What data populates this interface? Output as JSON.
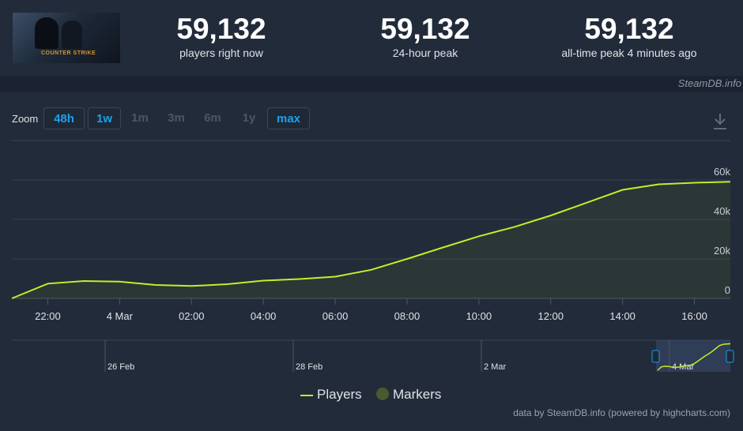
{
  "stats": {
    "current": {
      "value": "59,132",
      "label": "players right now"
    },
    "peak24": {
      "value": "59,132",
      "label": "24-hour peak"
    },
    "alltime": {
      "value": "59,132",
      "label": "all-time peak 4 minutes ago"
    }
  },
  "logo": {
    "text": "COUNTER STRIKE",
    "icon": "game-logo"
  },
  "credit_top": "SteamDB.info",
  "zoom": {
    "label": "Zoom",
    "buttons": [
      {
        "label": "48h",
        "active": true
      },
      {
        "label": "1w",
        "active": true
      },
      {
        "label": "1m",
        "active": false
      },
      {
        "label": "3m",
        "active": false
      },
      {
        "label": "6m",
        "active": false
      },
      {
        "label": "1y",
        "active": false
      },
      {
        "label": "max",
        "active": true
      }
    ]
  },
  "download_icon": "download-icon",
  "legend": {
    "players": "Players",
    "markers": "Markers"
  },
  "credit_bottom": "data by SteamDB.info (powered by highcharts.com)",
  "colors": {
    "line": "#c3ee27",
    "marker": "#4a5a2e",
    "accent": "#1aa1ee"
  },
  "chart_data": {
    "type": "line",
    "series": [
      {
        "name": "Players",
        "x": [
          "21:00",
          "22:00",
          "23:00",
          "4 Mar",
          "01:00",
          "02:00",
          "03:00",
          "04:00",
          "05:00",
          "06:00",
          "07:00",
          "08:00",
          "09:00",
          "10:00",
          "11:00",
          "12:00",
          "13:00",
          "14:00",
          "15:00",
          "16:00",
          "16:20"
        ],
        "values": [
          0,
          7500,
          8800,
          8500,
          6800,
          6300,
          7200,
          9000,
          9800,
          11000,
          14500,
          20000,
          25800,
          31500,
          36300,
          42000,
          48500,
          55000,
          57800,
          58600,
          59132
        ]
      }
    ],
    "x_ticks": [
      "22:00",
      "4 Mar",
      "02:00",
      "04:00",
      "06:00",
      "08:00",
      "10:00",
      "12:00",
      "14:00",
      "16:00"
    ],
    "y_ticks": [
      "0",
      "20k",
      "40k",
      "60k"
    ],
    "ylim": [
      0,
      60000
    ],
    "grid": true,
    "navigator": {
      "labels": [
        "26 Feb",
        "28 Feb",
        "2 Mar",
        "4 Mar"
      ]
    }
  }
}
